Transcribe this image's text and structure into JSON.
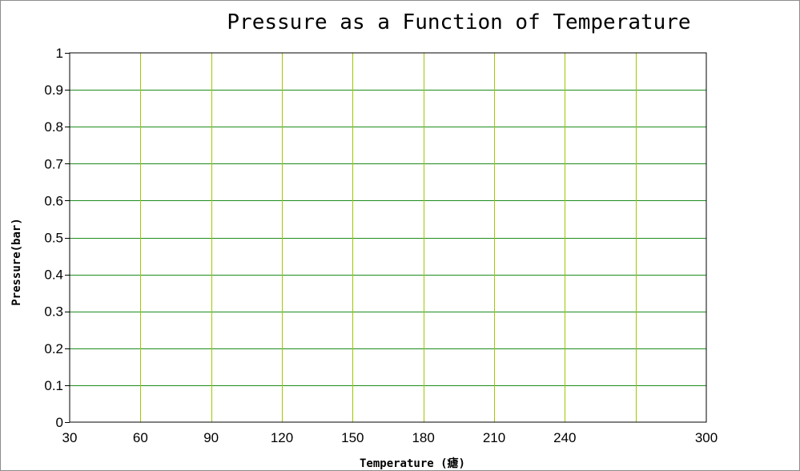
{
  "chart_data": {
    "type": "line",
    "title": "Pressure as a Function of Temperature",
    "xlabel": "Temperature (瘧)",
    "ylabel": "Pressure(bar)",
    "xlim": [
      30,
      300
    ],
    "ylim": [
      0,
      1
    ],
    "x_ticks": [
      30,
      60,
      90,
      120,
      150,
      180,
      210,
      240,
      300
    ],
    "x_gridlines": [
      60,
      90,
      120,
      150,
      180,
      210,
      240,
      270
    ],
    "y_ticks": [
      0,
      0.1,
      0.2,
      0.3,
      0.4,
      0.5,
      0.6,
      0.7,
      0.8,
      0.9,
      1
    ],
    "y_tick_labels": [
      "0",
      "0.1",
      "0.2",
      "0.3",
      "0.4",
      "0.5",
      "0.6",
      "0.7",
      "0.8",
      "0.9",
      "1"
    ],
    "grid": true,
    "series": [],
    "colors": {
      "vertical_grid": "#a0c800",
      "horizontal_grid": "#1e8c1e",
      "axis": "#000000"
    }
  }
}
